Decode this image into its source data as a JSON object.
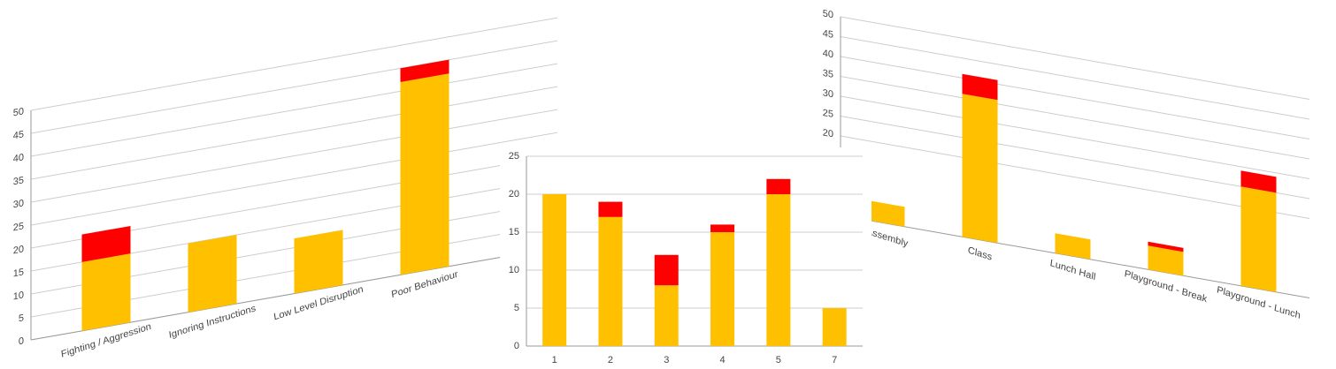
{
  "chart_data": [
    {
      "type": "bar",
      "stacked": true,
      "categories": [
        "Fighting / Aggression",
        "Ignoring Instructions",
        "Low Level Disruption",
        "Poor Behaviour"
      ],
      "series": [
        {
          "color": "#ffc000",
          "values": [
            15,
            15,
            12,
            42
          ]
        },
        {
          "color": "#ff0000",
          "values": [
            6,
            0,
            0,
            3
          ]
        }
      ],
      "ylim": [
        0,
        50
      ],
      "yticks": [
        0,
        5,
        10,
        15,
        20,
        25,
        30,
        35,
        40,
        45,
        50
      ],
      "grid": true
    },
    {
      "type": "bar",
      "stacked": true,
      "categories": [
        "Assembly",
        "Class",
        "Lunch Hall",
        "Playground - Break",
        "Playground - Lunch"
      ],
      "series": [
        {
          "color": "#ffc000",
          "values": [
            5,
            36,
            5,
            6,
            25
          ]
        },
        {
          "color": "#ff0000",
          "values": [
            0,
            5,
            0,
            1,
            4
          ]
        }
      ],
      "ylim": [
        0,
        50
      ],
      "yticks": [
        20,
        25,
        30,
        35,
        40,
        45,
        50
      ],
      "grid": true
    },
    {
      "type": "bar",
      "stacked": true,
      "categories": [
        "1",
        "2",
        "3",
        "4",
        "5",
        "7"
      ],
      "series": [
        {
          "color": "#ffc000",
          "values": [
            20,
            17,
            8,
            15,
            20,
            5
          ]
        },
        {
          "color": "#ff0000",
          "values": [
            0,
            2,
            4,
            1,
            2,
            0
          ]
        }
      ],
      "ylim": [
        0,
        25
      ],
      "yticks": [
        0,
        5,
        10,
        15,
        20,
        25
      ],
      "grid": true
    }
  ]
}
